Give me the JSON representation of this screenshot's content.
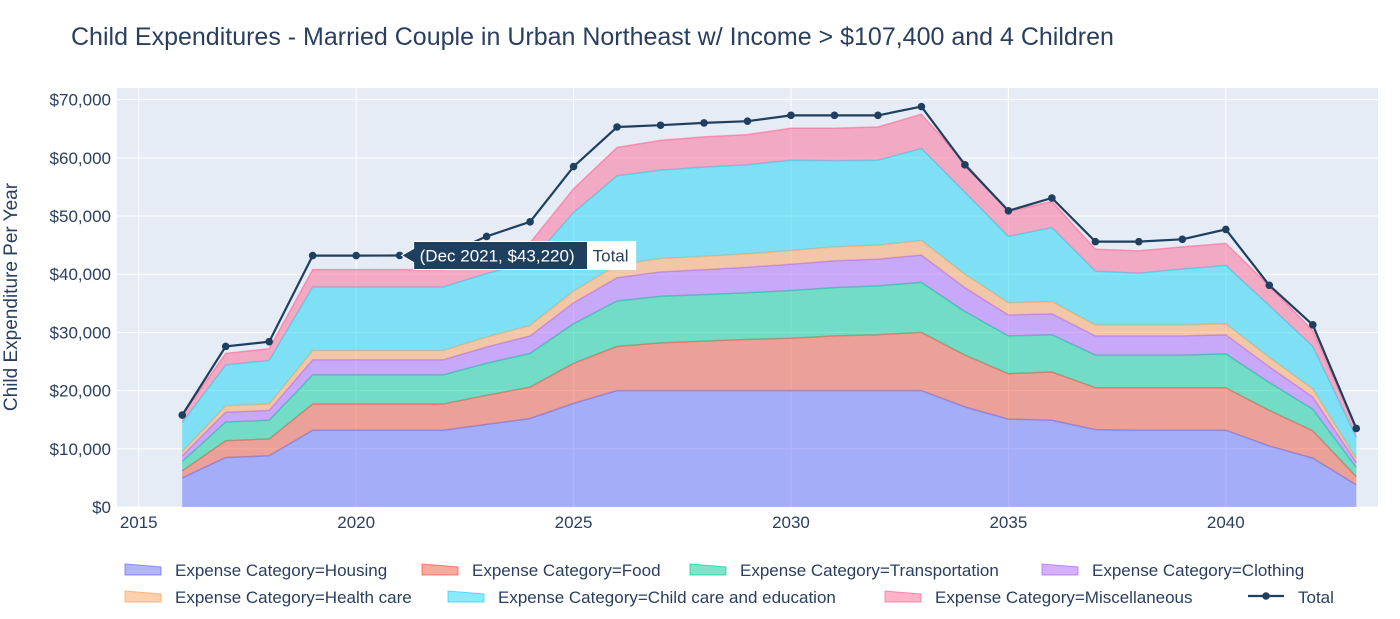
{
  "chart_data": {
    "type": "area",
    "title": "Child Expenditures - Married Couple in Urban Northeast w/ Income > $107,400 and 4 Children",
    "ylabel": "Child Expenditure Per Year",
    "xlabel": "",
    "xlim": [
      2014.5,
      2043.5
    ],
    "ylim": [
      0,
      72000
    ],
    "x_ticks": [
      2015,
      2020,
      2025,
      2030,
      2035,
      2040
    ],
    "y_ticks": [
      0,
      10000,
      20000,
      30000,
      40000,
      50000,
      60000,
      70000
    ],
    "y_tick_labels": [
      "$0",
      "$10,000",
      "$20,000",
      "$30,000",
      "$40,000",
      "$50,000",
      "$60,000",
      "$70,000"
    ],
    "grid": true,
    "legend_position": "bottom",
    "x": [
      2016,
      2017,
      2018,
      2019,
      2020,
      2021,
      2022,
      2023,
      2024,
      2025,
      2026,
      2027,
      2028,
      2029,
      2030,
      2031,
      2032,
      2033,
      2034,
      2035,
      2036,
      2037,
      2038,
      2039,
      2040,
      2041,
      2042,
      2043
    ],
    "series": [
      {
        "name": "Expense Category=Housing",
        "color": "#636efa",
        "values": [
          5000,
          8500,
          8800,
          13200,
          13200,
          13200,
          13200,
          14200,
          15200,
          17800,
          20000,
          20000,
          20000,
          20000,
          20000,
          20000,
          20000,
          20000,
          17200,
          15100,
          14900,
          13300,
          13200,
          13200,
          13200,
          10500,
          8400,
          3800
        ]
      },
      {
        "name": "Expense Category=Food",
        "color": "#ef553b",
        "values": [
          1200,
          2900,
          2900,
          4500,
          4500,
          4500,
          4500,
          5000,
          5400,
          6900,
          7600,
          8200,
          8500,
          8800,
          9000,
          9400,
          9600,
          10000,
          8900,
          7800,
          8300,
          7200,
          7300,
          7300,
          7300,
          6100,
          4700,
          1400
        ]
      },
      {
        "name": "Expense Category=Transportation",
        "color": "#00cc96",
        "values": [
          1600,
          3200,
          3200,
          5000,
          5000,
          5000,
          5000,
          5500,
          5800,
          6800,
          7800,
          8000,
          8000,
          8000,
          8200,
          8300,
          8400,
          8600,
          7500,
          6500,
          6400,
          5600,
          5600,
          5600,
          5800,
          4800,
          3700,
          1600
        ]
      },
      {
        "name": "Expense Category=Clothing",
        "color": "#ab63fa",
        "values": [
          1000,
          1700,
          1700,
          2600,
          2600,
          2600,
          2600,
          2800,
          3000,
          3600,
          4000,
          4200,
          4300,
          4400,
          4500,
          4600,
          4600,
          4700,
          4100,
          3600,
          3600,
          3300,
          3300,
          3300,
          3300,
          2700,
          2100,
          900
        ]
      },
      {
        "name": "Expense Category=Health care",
        "color": "#ffa15a",
        "values": [
          700,
          1100,
          1100,
          1600,
          1600,
          1600,
          1600,
          1700,
          1800,
          2000,
          2200,
          2300,
          2300,
          2300,
          2400,
          2400,
          2400,
          2500,
          2300,
          2100,
          2100,
          1900,
          1900,
          1900,
          1900,
          1600,
          1400,
          600
        ]
      },
      {
        "name": "Expense Category=Child care and education",
        "color": "#19d3f3",
        "values": [
          5000,
          7000,
          7500,
          10900,
          10900,
          10900,
          10900,
          10900,
          10900,
          13500,
          15300,
          15200,
          15300,
          15300,
          15500,
          14800,
          14600,
          15800,
          14100,
          11400,
          12700,
          9200,
          8900,
          9600,
          10000,
          8900,
          7300,
          3700
        ]
      },
      {
        "name": "Expense Category=Miscellaneous",
        "color": "#ff6692",
        "values": [
          1300,
          2000,
          2000,
          3000,
          3000,
          3000,
          3000,
          3300,
          3300,
          4100,
          4900,
          5100,
          5200,
          5200,
          5500,
          5600,
          5700,
          5900,
          5000,
          4300,
          4500,
          3800,
          3800,
          3800,
          3800,
          3400,
          2700,
          1300
        ]
      },
      {
        "name": "Total",
        "color": "#1f3f5f",
        "values": [
          15800,
          27600,
          28400,
          43200,
          43200,
          43220,
          43200,
          46500,
          49000,
          58500,
          65300,
          65600,
          66000,
          66300,
          67300,
          67300,
          67300,
          68800,
          58800,
          50900,
          53100,
          45600,
          45600,
          46000,
          47700,
          38100,
          31300,
          13500
        ]
      }
    ],
    "hover": {
      "text": "(Dec 2021, $43,220)",
      "series": "Total",
      "point_index": 5
    }
  }
}
